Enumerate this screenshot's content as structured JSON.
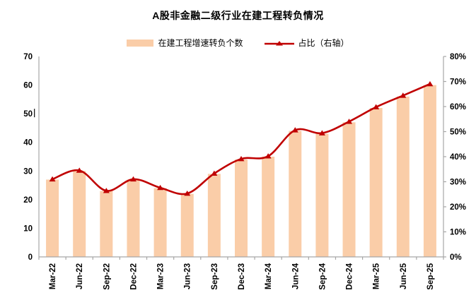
{
  "page": {
    "background": "#FFFFFF"
  },
  "chart_data": {
    "type": "bar+line",
    "title": "A股非金融二级行业在建工程转负情况",
    "categories": [
      "Mar-22",
      "Jun-22",
      "Sep-22",
      "Dec-22",
      "Mar-23",
      "Jun-23",
      "Sep-23",
      "Dec-23",
      "Mar-24",
      "Jun-24",
      "Sep-24",
      "Dec-24",
      "Mar-25",
      "Jun-25",
      "Sep-25"
    ],
    "series": [
      {
        "name": "在建工程增速转负个数",
        "type": "bar",
        "axis": "left",
        "color": "#FACDA8",
        "values": [
          27,
          30,
          23,
          27,
          24,
          22,
          29,
          34,
          35,
          44,
          43,
          47,
          52,
          56,
          60
        ]
      },
      {
        "name": "占比（右轴）",
        "type": "line",
        "axis": "right",
        "color": "#C00000",
        "marker": "triangle-up",
        "values": [
          31.0,
          34.5,
          26.4,
          31.0,
          27.6,
          25.3,
          33.3,
          39.1,
          40.2,
          50.6,
          49.4,
          54.0,
          59.8,
          64.4,
          69.0
        ]
      }
    ],
    "left_axis": {
      "min": 0,
      "max": 70,
      "step": 10,
      "ticks": [
        "0",
        "10",
        "20",
        "30",
        "40",
        "50",
        "60",
        "70"
      ],
      "cursor_artifact_after": "50"
    },
    "right_axis": {
      "min": 0,
      "max": 80,
      "step": 10,
      "ticks": [
        "0%",
        "10%",
        "20%",
        "30%",
        "40%",
        "50%",
        "60%",
        "70%",
        "80%"
      ]
    },
    "axis_color": "#A6A6A6",
    "label_color": "#000000",
    "grid": false,
    "legend_position": "top"
  }
}
